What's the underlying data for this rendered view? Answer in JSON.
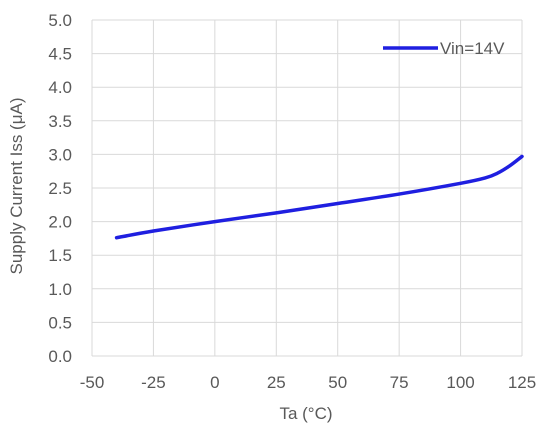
{
  "chart_data": {
    "type": "line",
    "title": "",
    "xlabel": "Ta (°C)",
    "ylabel": "Supply Current Iss (μA)",
    "xlim": [
      -50,
      125
    ],
    "ylim": [
      0.0,
      5.0
    ],
    "xticks": [
      "-50",
      "-25",
      "0",
      "25",
      "50",
      "75",
      "100",
      "125"
    ],
    "yticks": [
      "0.0",
      "0.5",
      "1.0",
      "1.5",
      "2.0",
      "2.5",
      "3.0",
      "3.5",
      "4.0",
      "4.5",
      "5.0"
    ],
    "grid": true,
    "legend_position": "top-right",
    "series": [
      {
        "name": "Vin=14V",
        "color": "#1f1fe0",
        "x": [
          -40,
          -25,
          0,
          25,
          50,
          75,
          100,
          110,
          115,
          120,
          125
        ],
        "y": [
          1.76,
          1.86,
          2.0,
          2.13,
          2.27,
          2.41,
          2.57,
          2.65,
          2.72,
          2.83,
          2.97
        ]
      }
    ]
  }
}
